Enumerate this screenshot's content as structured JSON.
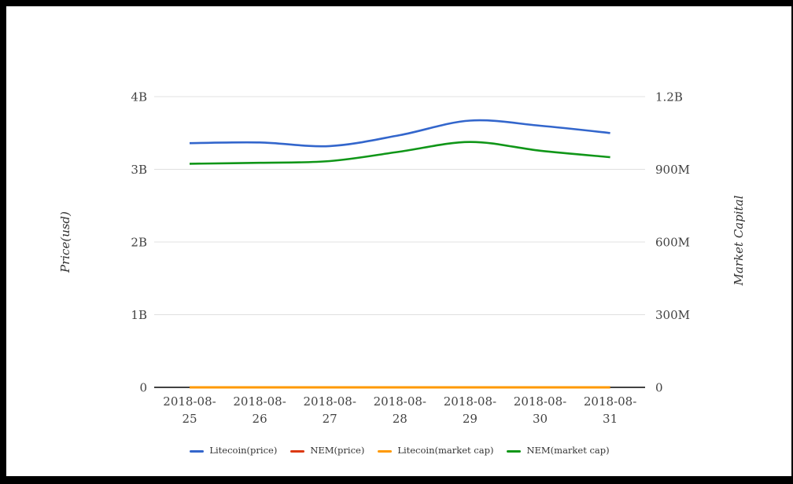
{
  "frame": {
    "color": "#000000"
  },
  "chart_data": {
    "type": "line",
    "title": "",
    "x": [
      "2018-08-25",
      "2018-08-26",
      "2018-08-27",
      "2018-08-28",
      "2018-08-29",
      "2018-08-30",
      "2018-08-31"
    ],
    "series": [
      {
        "name": "Litecoin(price)",
        "color": "#3366cc",
        "axis": "left",
        "values": [
          3360000000,
          3370000000,
          3320000000,
          3470000000,
          3670000000,
          3600000000,
          3500000000
        ]
      },
      {
        "name": "NEM(price)",
        "color": "#dc3912",
        "axis": "left",
        "values": [
          0,
          0,
          0,
          0,
          0,
          0,
          0
        ]
      },
      {
        "name": "Litecoin(market cap)",
        "color": "#ff9900",
        "axis": "right",
        "values": [
          0,
          0,
          0,
          0,
          0,
          0,
          0
        ]
      },
      {
        "name": "NEM(market cap)",
        "color": "#109618",
        "axis": "right",
        "values": [
          923000000,
          927000000,
          934000000,
          973000000,
          1013000000,
          977000000,
          950000000
        ]
      }
    ],
    "left_axis": {
      "label": "Price(usd)",
      "ticks": [
        "0",
        "1B",
        "2B",
        "3B",
        "4B"
      ],
      "range": [
        0,
        4000000000
      ]
    },
    "right_axis": {
      "label": "Market Capital",
      "ticks": [
        "0",
        "300M",
        "600M",
        "900M",
        "1.2B"
      ],
      "range": [
        0,
        1200000000
      ]
    },
    "grid": "horizontal-only",
    "legend_position": "bottom",
    "colors": {
      "gridline": "#e0e0e0",
      "axis_baseline": "#424242",
      "text": "#424242"
    }
  }
}
